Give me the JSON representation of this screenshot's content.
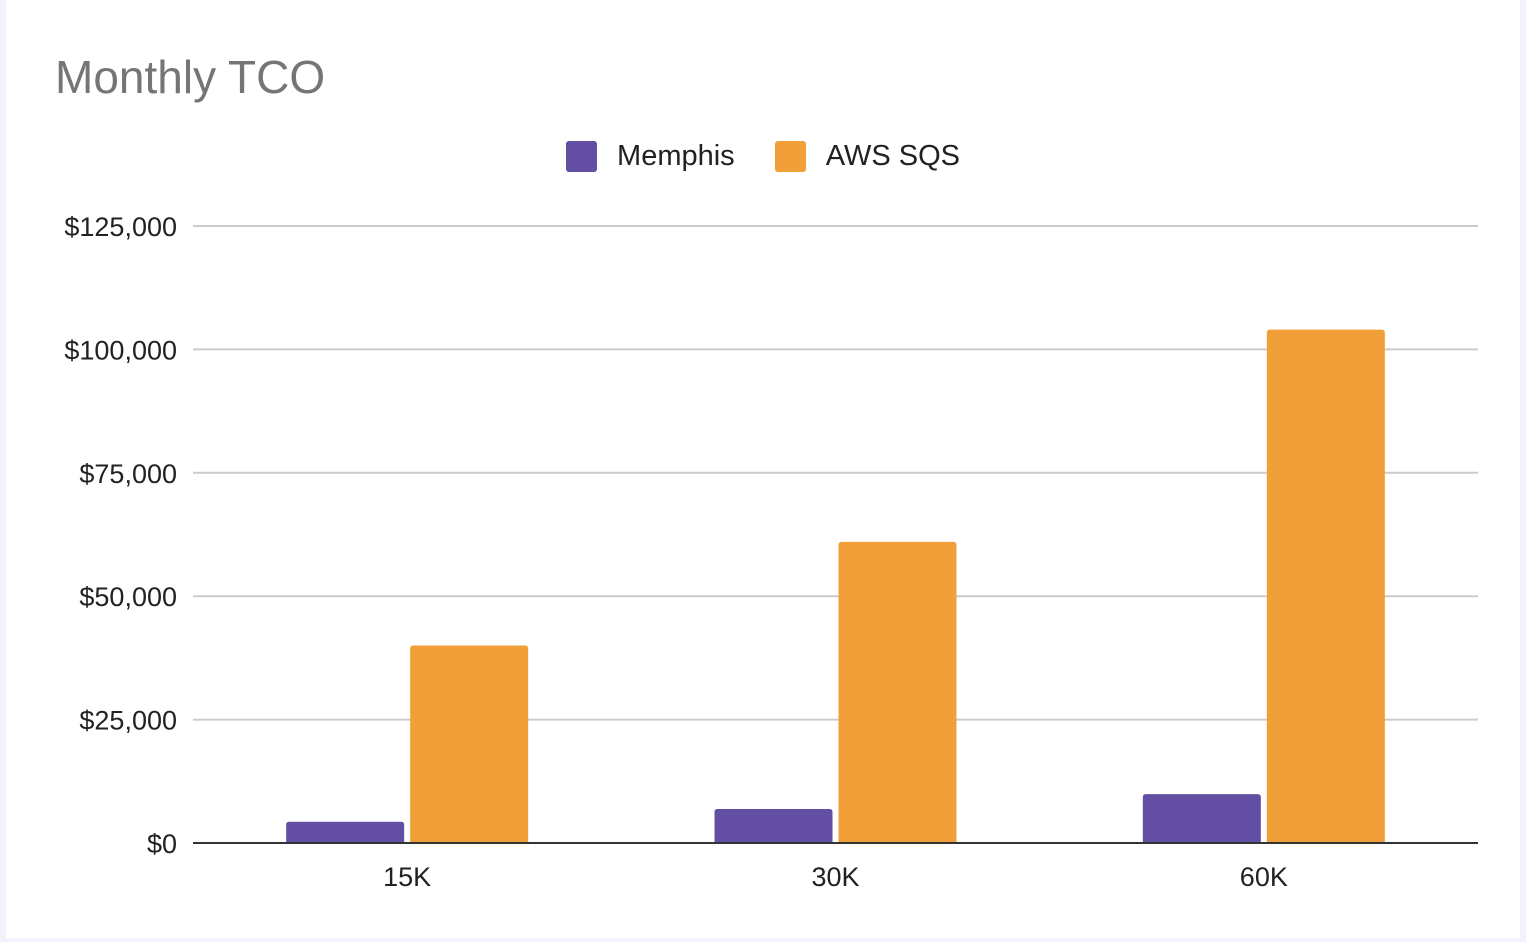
{
  "chart_data": {
    "type": "bar",
    "title": "Monthly TCO",
    "xlabel": "",
    "ylabel": "",
    "categories": [
      "15K",
      "30K",
      "60K"
    ],
    "series": [
      {
        "name": "Memphis",
        "color": "#624ea2",
        "values": [
          4300,
          6900,
          9900
        ]
      },
      {
        "name": "AWS SQS",
        "color": "#f19f39",
        "values": [
          40000,
          61000,
          104000
        ]
      }
    ],
    "ylim": [
      0,
      125000
    ],
    "yticks": [
      0,
      25000,
      50000,
      75000,
      100000,
      125000
    ],
    "ytick_labels": [
      "$0",
      "$25,000",
      "$50,000",
      "$75,000",
      "$100,000",
      "$125,000"
    ],
    "grid": true,
    "legend_position": "top-center"
  }
}
